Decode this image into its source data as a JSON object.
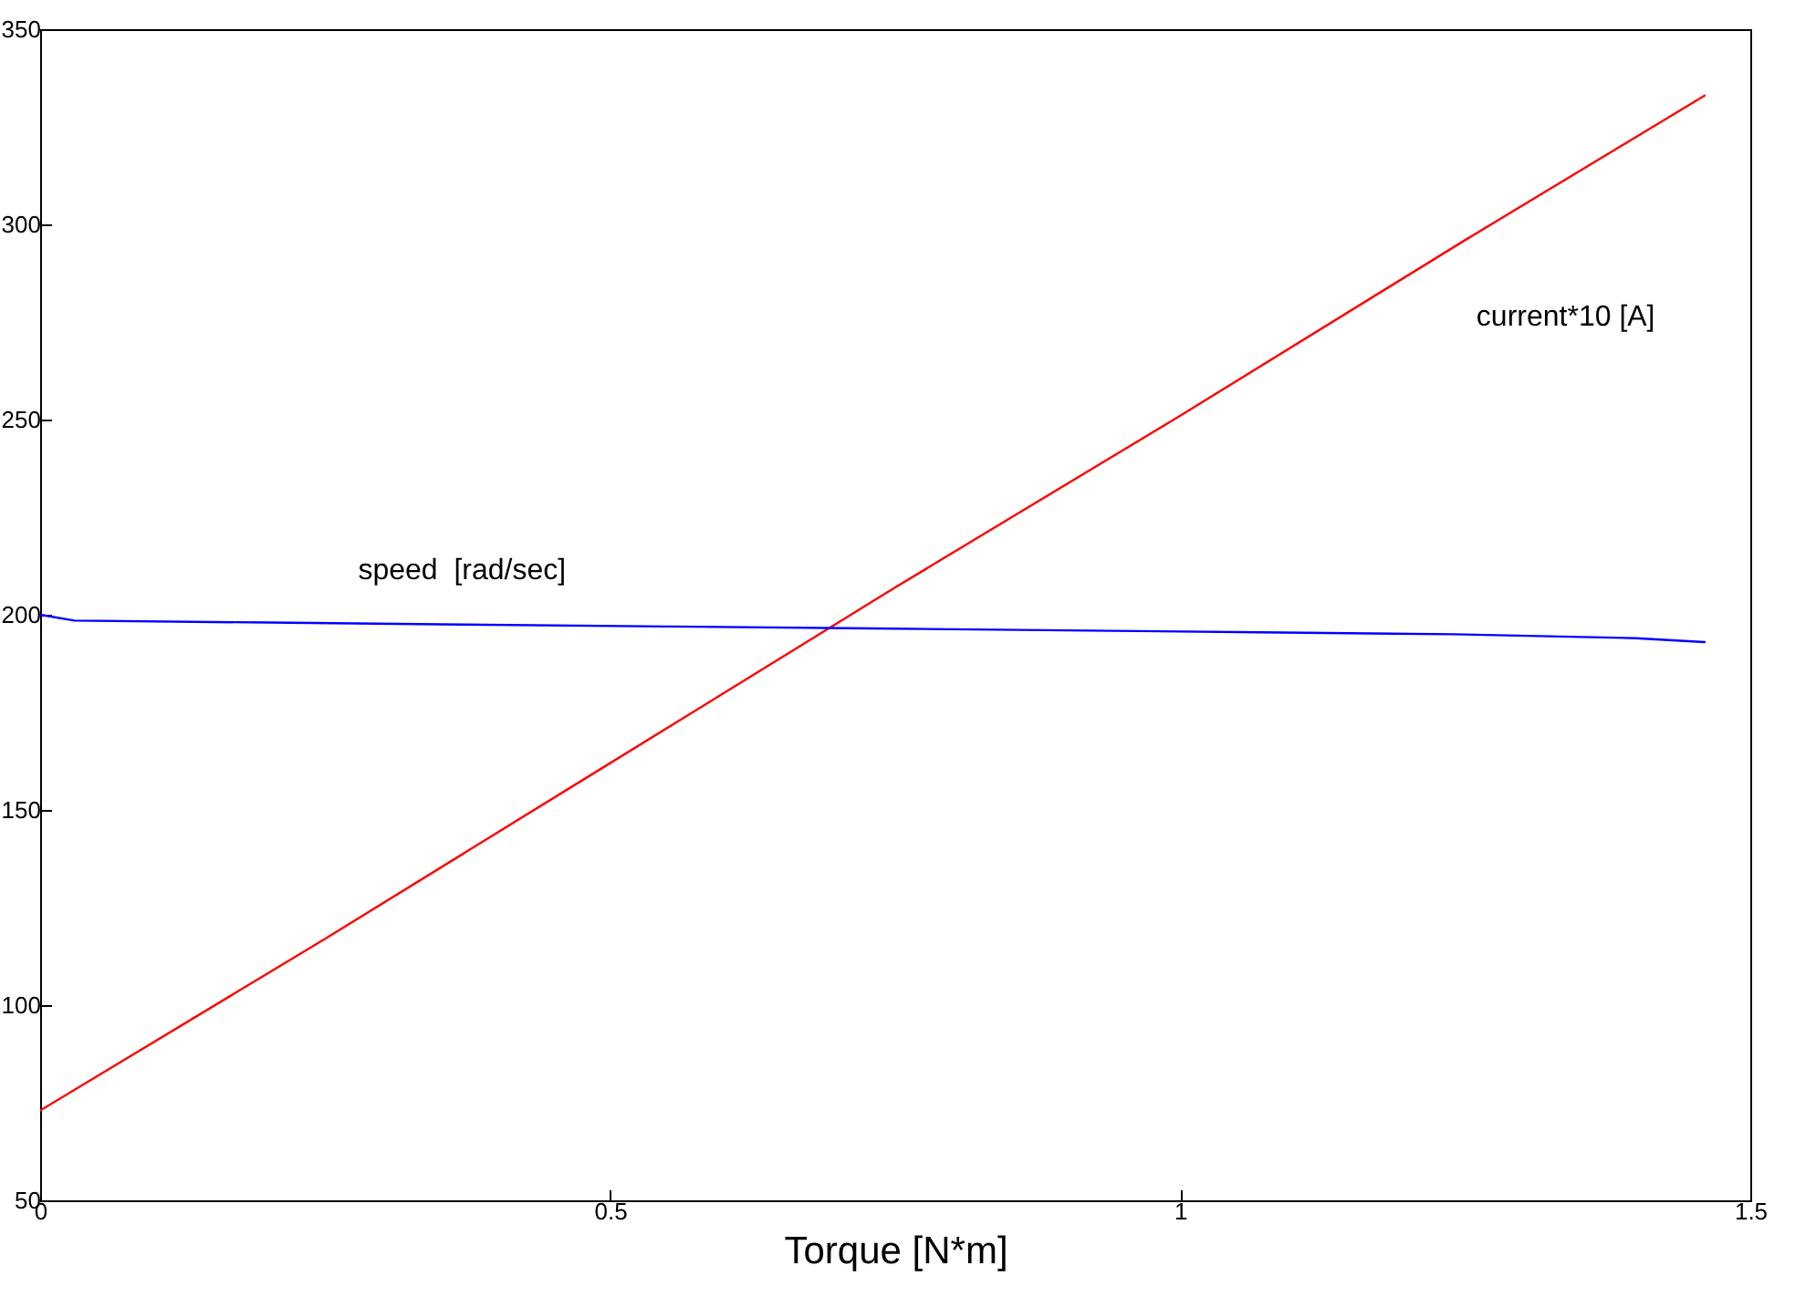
{
  "chart_data": {
    "type": "line",
    "xlabel": "Torque  [N*m]",
    "xlim": [
      0,
      1.5
    ],
    "xticks": [
      0,
      0.5,
      1,
      1.5
    ],
    "ylim": [
      50,
      350
    ],
    "yticks": [
      50,
      100,
      150,
      200,
      250,
      300,
      350
    ],
    "grid": false,
    "legend": false,
    "marker": "none",
    "line_style": "solid",
    "series": [
      {
        "name": "current*10 [A]",
        "color": "#ff0000",
        "x": [
          0,
          0.25,
          0.5,
          0.75,
          1,
          1.25,
          1.46
        ],
        "values": [
          73,
          117,
          162,
          207,
          251,
          296,
          333
        ]
      },
      {
        "name": "speed  [rad/sec]",
        "color": "#0000ff",
        "x": [
          0,
          0.03,
          0.2,
          0.37,
          0.55,
          0.73,
          0.9,
          1.07,
          1.24,
          1.4,
          1.46
        ],
        "values": [
          200,
          198.5,
          198,
          197.5,
          197,
          196.5,
          196,
          195.5,
          195,
          194,
          193
        ]
      }
    ]
  }
}
